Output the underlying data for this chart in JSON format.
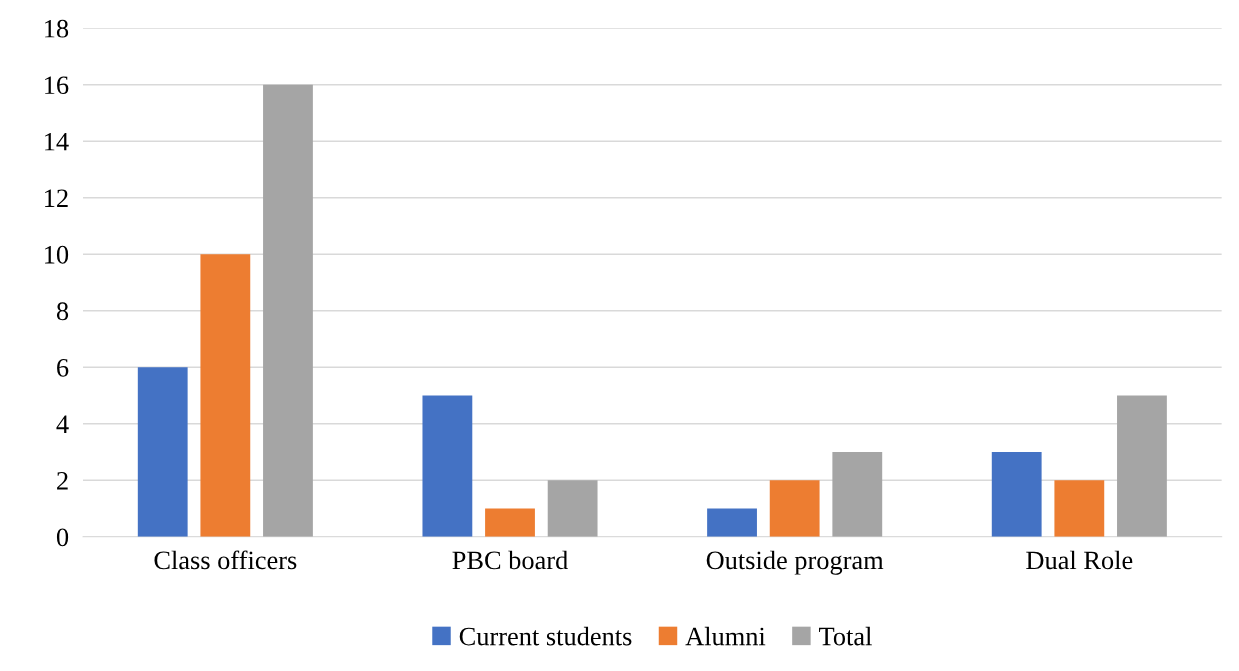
{
  "chart_data": {
    "type": "bar",
    "categories": [
      "Class officers",
      "PBC board",
      "Outside program",
      "Dual Role"
    ],
    "series": [
      {
        "name": "Current students",
        "color": "#4472c4",
        "values": [
          6,
          5,
          1,
          3
        ]
      },
      {
        "name": "Alumni",
        "color": "#ed7d31",
        "values": [
          10,
          1,
          2,
          2
        ]
      },
      {
        "name": "Total",
        "color": "#a5a5a5",
        "values": [
          16,
          2,
          3,
          5
        ]
      }
    ],
    "ylim": [
      0,
      18
    ],
    "yticks": [
      0,
      2,
      4,
      6,
      8,
      10,
      12,
      14,
      16,
      18
    ],
    "grid": "y",
    "legend": "bottom"
  }
}
